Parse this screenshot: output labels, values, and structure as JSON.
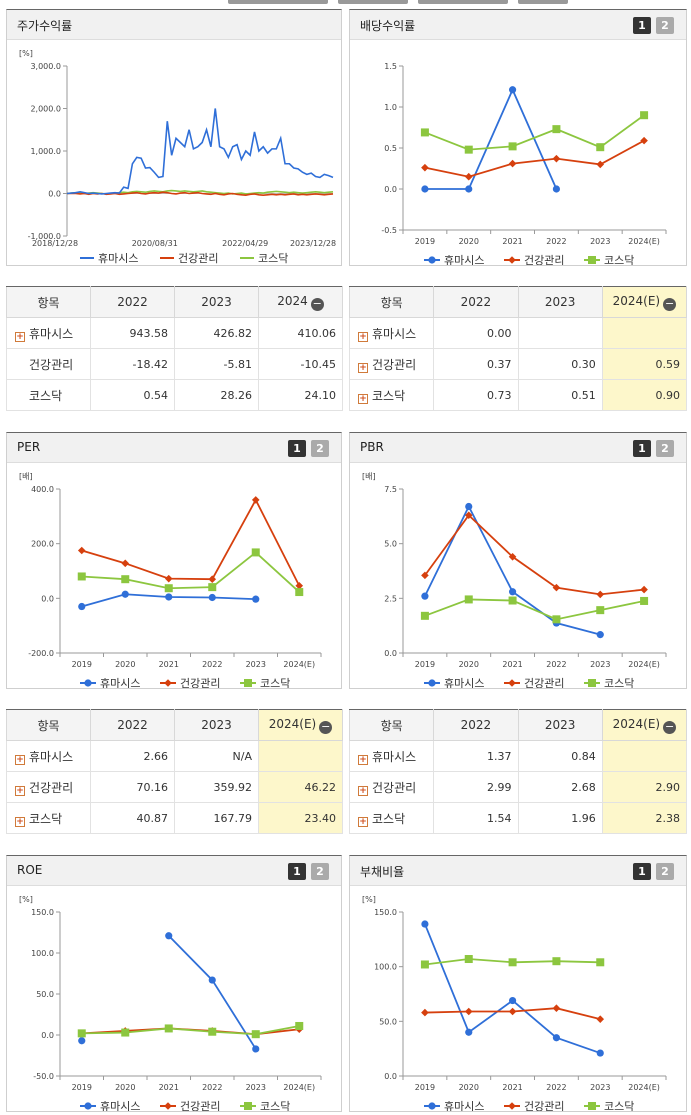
{
  "colors": {
    "humasis": "#2f6fd8",
    "health": "#d6400e",
    "kosdaq": "#8cc63f",
    "highlight": "#fdf7cb"
  },
  "legend": [
    "휴마시스",
    "건강관리",
    "코스닥"
  ],
  "panels": {
    "stock_return": {
      "title": "주가수익률"
    },
    "dividend": {
      "title": "배당수익률",
      "btn1": "1",
      "btn2": "2"
    },
    "per": {
      "title": "PER",
      "btn1": "1",
      "btn2": "2"
    },
    "pbr": {
      "title": "PBR",
      "btn1": "1",
      "btn2": "2"
    },
    "roe": {
      "title": "ROE",
      "btn1": "1",
      "btn2": "2"
    },
    "debt": {
      "title": "부채비율",
      "btn1": "1",
      "btn2": "2"
    }
  },
  "tables": {
    "stock_return": {
      "header": [
        "항목",
        "2022",
        "2023",
        "2024"
      ],
      "rows": [
        {
          "name": "휴마시스",
          "values": [
            "943.58",
            "426.82",
            "410.06"
          ],
          "expand": true
        },
        {
          "name": "건강관리",
          "values": [
            "-18.42",
            "-5.81",
            "-10.45"
          ],
          "expand": false
        },
        {
          "name": "코스닥",
          "values": [
            "0.54",
            "28.26",
            "24.10"
          ],
          "expand": false
        }
      ]
    },
    "dividend": {
      "header": [
        "항목",
        "2022",
        "2023",
        "2024(E)"
      ],
      "rows": [
        {
          "name": "휴마시스",
          "values": [
            "0.00",
            "",
            ""
          ],
          "expand": true
        },
        {
          "name": "건강관리",
          "values": [
            "0.37",
            "0.30",
            "0.59"
          ],
          "expand": true
        },
        {
          "name": "코스닥",
          "values": [
            "0.73",
            "0.51",
            "0.90"
          ],
          "expand": true
        }
      ]
    },
    "per": {
      "header": [
        "항목",
        "2022",
        "2023",
        "2024(E)"
      ],
      "rows": [
        {
          "name": "휴마시스",
          "values": [
            "2.66",
            "N/A",
            ""
          ],
          "expand": true
        },
        {
          "name": "건강관리",
          "values": [
            "70.16",
            "359.92",
            "46.22"
          ],
          "expand": true
        },
        {
          "name": "코스닥",
          "values": [
            "40.87",
            "167.79",
            "23.40"
          ],
          "expand": true
        }
      ]
    },
    "pbr": {
      "header": [
        "항목",
        "2022",
        "2023",
        "2024(E)"
      ],
      "rows": [
        {
          "name": "휴마시스",
          "values": [
            "1.37",
            "0.84",
            ""
          ],
          "expand": true
        },
        {
          "name": "건강관리",
          "values": [
            "2.99",
            "2.68",
            "2.90"
          ],
          "expand": true
        },
        {
          "name": "코스닥",
          "values": [
            "1.54",
            "1.96",
            "2.38"
          ],
          "expand": true
        }
      ]
    }
  },
  "chart_data": [
    {
      "id": "stock_return",
      "type": "line",
      "unit": "[%]",
      "ylim": [
        -1000,
        3000
      ],
      "yticks": [
        "3,000.0",
        "2,000.0",
        "1,000.0",
        "0.0",
        "-1,000.0"
      ],
      "ytick_values": [
        3000,
        2000,
        1000,
        0,
        -1000
      ],
      "xticks": [
        "2018/12/28",
        "2020/08/31",
        "2022/04/29",
        "2023/12/28"
      ],
      "series": [
        {
          "name": "휴마시스",
          "values": [
            0,
            10,
            20,
            40,
            20,
            0,
            10,
            0,
            -10,
            0,
            10,
            20,
            10,
            150,
            120,
            700,
            850,
            830,
            600,
            610,
            500,
            380,
            400,
            1700,
            900,
            1300,
            1200,
            1100,
            1500,
            1050,
            1100,
            1200,
            1500,
            1100,
            2000,
            1100,
            1050,
            850,
            1100,
            1150,
            800,
            1000,
            900,
            1450,
            1000,
            1100,
            950,
            1050,
            1050,
            1300,
            700,
            700,
            600,
            580,
            500,
            450,
            480,
            400,
            380,
            450,
            420,
            380
          ]
        },
        {
          "name": "건강관리",
          "values": [
            0,
            0,
            0,
            -10,
            0,
            -20,
            0,
            -10,
            0,
            -20,
            -10,
            0,
            -20,
            -10,
            0,
            10,
            20,
            0,
            -10,
            10,
            20,
            10,
            30,
            20,
            0,
            -10,
            10,
            20,
            0,
            10,
            20,
            0,
            -10,
            -20,
            0,
            -20,
            -30,
            -10,
            0,
            -20,
            -30,
            -40,
            -20,
            -10,
            -30,
            -40,
            -30,
            -20,
            -30,
            -20,
            -30,
            -20,
            -10,
            -30,
            -20,
            -30,
            -20,
            -10,
            -20,
            -30,
            -20,
            -10
          ]
        },
        {
          "name": "코스닥",
          "values": [
            0,
            10,
            20,
            10,
            0,
            10,
            20,
            10,
            0,
            -10,
            0,
            10,
            20,
            30,
            20,
            40,
            50,
            40,
            30,
            50,
            60,
            50,
            40,
            60,
            70,
            60,
            50,
            60,
            50,
            40,
            50,
            60,
            40,
            30,
            20,
            10,
            0,
            10,
            -10,
            0,
            10,
            -10,
            0,
            10,
            20,
            10,
            30,
            40,
            50,
            40,
            30,
            20,
            30,
            20,
            10,
            20,
            30,
            40,
            30,
            20,
            30,
            40
          ]
        }
      ]
    },
    {
      "id": "dividend",
      "type": "line",
      "ylim": [
        -0.5,
        1.5
      ],
      "yticks": [
        "1.5",
        "1.0",
        "0.5",
        "0.0",
        "-0.5"
      ],
      "ytick_values": [
        1.5,
        1.0,
        0.5,
        0.0,
        -0.5
      ],
      "categories": [
        "2019",
        "2020",
        "2021",
        "2022",
        "2023",
        "2024(E)"
      ],
      "series": [
        {
          "name": "휴마시스",
          "values": [
            0.0,
            0.0,
            1.21,
            0.0,
            null,
            null
          ]
        },
        {
          "name": "건강관리",
          "values": [
            0.26,
            0.15,
            0.31,
            0.37,
            0.3,
            0.59
          ]
        },
        {
          "name": "코스닥",
          "values": [
            0.69,
            0.48,
            0.52,
            0.73,
            0.51,
            0.9
          ]
        }
      ]
    },
    {
      "id": "per",
      "type": "line",
      "unit": "[배]",
      "ylim": [
        -200,
        400
      ],
      "yticks": [
        "400.0",
        "200.0",
        "0.0",
        "-200.0"
      ],
      "ytick_values": [
        400,
        200,
        0,
        -200
      ],
      "categories": [
        "2019",
        "2020",
        "2021",
        "2022",
        "2023",
        "2024(E)"
      ],
      "series": [
        {
          "name": "휴마시스",
          "values": [
            -30,
            15,
            5,
            3,
            -3,
            null
          ]
        },
        {
          "name": "건강관리",
          "values": [
            175,
            128,
            72,
            70,
            360,
            46
          ]
        },
        {
          "name": "코스닥",
          "values": [
            80,
            70,
            37,
            41,
            168,
            23
          ]
        }
      ]
    },
    {
      "id": "pbr",
      "type": "line",
      "unit": "[배]",
      "ylim": [
        0,
        7.5
      ],
      "yticks": [
        "7.5",
        "5.0",
        "2.5",
        "0.0"
      ],
      "ytick_values": [
        7.5,
        5.0,
        2.5,
        0.0
      ],
      "categories": [
        "2019",
        "2020",
        "2021",
        "2022",
        "2023",
        "2024(E)"
      ],
      "series": [
        {
          "name": "휴마시스",
          "values": [
            2.6,
            6.7,
            2.8,
            1.37,
            0.84,
            null
          ]
        },
        {
          "name": "건강관리",
          "values": [
            3.55,
            6.3,
            4.4,
            2.99,
            2.68,
            2.9
          ]
        },
        {
          "name": "코스닥",
          "values": [
            1.7,
            2.45,
            2.4,
            1.54,
            1.96,
            2.38
          ]
        }
      ]
    },
    {
      "id": "roe",
      "type": "line",
      "unit": "[%]",
      "ylim": [
        -50,
        150
      ],
      "yticks": [
        "150.0",
        "100.0",
        "50.0",
        "0.0",
        "-50.0"
      ],
      "ytick_values": [
        150,
        100,
        50,
        0,
        -50
      ],
      "categories": [
        "2019",
        "2020",
        "2021",
        "2022",
        "2023",
        "2024(E)"
      ],
      "series": [
        {
          "name": "휴마시스",
          "values": [
            -7,
            null,
            121,
            67,
            -17,
            null
          ]
        },
        {
          "name": "건강관리",
          "values": [
            2,
            5,
            8,
            5,
            1,
            7
          ]
        },
        {
          "name": "코스닥",
          "values": [
            2,
            3,
            8,
            4,
            1,
            11
          ]
        }
      ]
    },
    {
      "id": "debt",
      "type": "line",
      "unit": "[%]",
      "ylim": [
        0,
        150
      ],
      "yticks": [
        "150.0",
        "100.0",
        "50.0",
        "0.0"
      ],
      "ytick_values": [
        150,
        100,
        50,
        0
      ],
      "categories": [
        "2019",
        "2020",
        "2021",
        "2022",
        "2023",
        "2024(E)"
      ],
      "series": [
        {
          "name": "휴마시스",
          "values": [
            139,
            40,
            69,
            35,
            21,
            null
          ]
        },
        {
          "name": "건강관리",
          "values": [
            58,
            59,
            59,
            62,
            52,
            null
          ]
        },
        {
          "name": "코스닥",
          "values": [
            102,
            107,
            104,
            105,
            104,
            null
          ]
        }
      ]
    }
  ]
}
